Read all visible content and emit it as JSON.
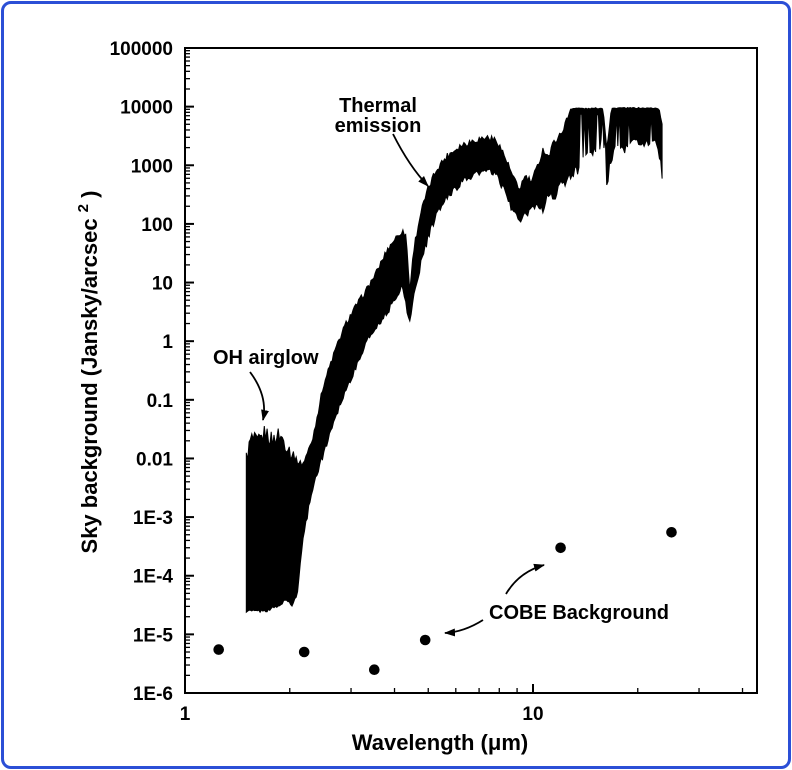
{
  "frame": {
    "border_color": "#2b4fd6",
    "background": "#ffffff"
  },
  "chart_data": {
    "type": "area+scatter",
    "title": "",
    "xlabel": "Wavelength (μm)",
    "ylabel": "Sky background (Jansky/arcsec²)",
    "ylabel_parts": {
      "main": "Sky background (Jansky/arcsec",
      "sup": "2",
      "end": ")"
    },
    "x_scale": "log",
    "y_scale": "log",
    "xlim": [
      1,
      44
    ],
    "ylim": [
      1e-06,
      100000.0
    ],
    "grid": false,
    "x_major_ticks": [
      {
        "value": 1,
        "label": "1"
      },
      {
        "value": 10,
        "label": "10"
      }
    ],
    "x_minor_ticks": [
      2,
      3,
      4,
      5,
      6,
      7,
      8,
      9,
      20,
      30,
      40
    ],
    "y_major_ticks": [
      {
        "value": 100000,
        "label": "100000"
      },
      {
        "value": 10000,
        "label": "10000"
      },
      {
        "value": 1000,
        "label": "1000"
      },
      {
        "value": 100,
        "label": "100"
      },
      {
        "value": 10,
        "label": "10"
      },
      {
        "value": 1,
        "label": "1"
      },
      {
        "value": 0.1,
        "label": "0.1"
      },
      {
        "value": 0.01,
        "label": "0.01"
      },
      {
        "value": 0.001,
        "label": "1E-3"
      },
      {
        "value": 0.0001,
        "label": "1E-4"
      },
      {
        "value": 1e-05,
        "label": "1E-5"
      },
      {
        "value": 1e-06,
        "label": "1E-6"
      }
    ],
    "annotations": {
      "thermal": {
        "line1": "Thermal",
        "line2": "emission",
        "target": "thermal emission band near 5 μm"
      },
      "oh": {
        "text": "OH airglow",
        "target": "OH airglow band near 1.6 μm"
      },
      "cobe": {
        "text": "COBE Background",
        "target": "COBE scatter points"
      }
    },
    "series": [
      {
        "name": "sky-background-spectrum",
        "type": "filled-band",
        "color": "#000000",
        "description": "Noisy filled band: OH airglow (1.5-2 um) rising through thermal emission to ~1e4 Jy/arcsec2 at 13-24 um; values are [wavelength_um, band_low, band_high] in Jansky/arcsec2",
        "envelope": [
          [
            1.5,
            2.5e-05,
            0.01
          ],
          [
            1.55,
            2.5e-05,
            0.022
          ],
          [
            1.62,
            2.5e-05,
            0.018
          ],
          [
            1.7,
            2.5e-05,
            0.028
          ],
          [
            1.78,
            2.8e-05,
            0.02
          ],
          [
            1.86,
            3e-05,
            0.026
          ],
          [
            1.95,
            4e-05,
            0.018
          ],
          [
            2.03,
            3e-05,
            0.012
          ],
          [
            2.1,
            5e-05,
            0.009
          ],
          [
            2.18,
            0.0004,
            0.008
          ],
          [
            2.32,
            0.003,
            0.02
          ],
          [
            2.5,
            0.012,
            0.18
          ],
          [
            2.7,
            0.05,
            0.7
          ],
          [
            2.9,
            0.15,
            2.0
          ],
          [
            3.1,
            0.35,
            4.0
          ],
          [
            3.3,
            0.9,
            7.0
          ],
          [
            3.55,
            1.8,
            15
          ],
          [
            3.8,
            3.0,
            35
          ],
          [
            4.0,
            5.0,
            55
          ],
          [
            4.2,
            9.0,
            75
          ],
          [
            4.32,
            4.0,
            65
          ],
          [
            4.42,
            2.0,
            7.0
          ],
          [
            4.55,
            6.0,
            40
          ],
          [
            4.75,
            20,
            150
          ],
          [
            5.0,
            60,
            400
          ],
          [
            5.3,
            150,
            900
          ],
          [
            5.7,
            300,
            1500
          ],
          [
            6.2,
            500,
            2200
          ],
          [
            6.8,
            700,
            2700
          ],
          [
            7.4,
            800,
            3000
          ],
          [
            7.9,
            650,
            2600
          ],
          [
            8.3,
            350,
            1400
          ],
          [
            8.7,
            180,
            700
          ],
          [
            9.1,
            110,
            380
          ],
          [
            9.5,
            140,
            650
          ],
          [
            9.9,
            170,
            520
          ],
          [
            10.3,
            220,
            950
          ],
          [
            10.7,
            170,
            1900
          ],
          [
            11.1,
            350,
            1400
          ],
          [
            11.5,
            250,
            2600
          ],
          [
            11.95,
            550,
            3200
          ],
          [
            12.4,
            450,
            5200
          ],
          [
            12.85,
            700,
            9300
          ],
          [
            13.5,
            900,
            9400
          ],
          [
            14.3,
            1300,
            9200
          ],
          [
            15.2,
            2000,
            9400
          ],
          [
            15.9,
            2600,
            9300
          ],
          [
            16.3,
            500,
            1900
          ],
          [
            16.8,
            1300,
            9300
          ],
          [
            17.6,
            2400,
            9500
          ],
          [
            18.6,
            1800,
            9400
          ],
          [
            19.6,
            2800,
            9500
          ],
          [
            21.0,
            2200,
            9400
          ],
          [
            22.3,
            3000,
            9450
          ],
          [
            23.0,
            1500,
            9300
          ],
          [
            23.5,
            700,
            5000
          ]
        ]
      },
      {
        "name": "cobe-background",
        "label": "COBE Background",
        "type": "scatter",
        "marker": "circle",
        "color": "#000000",
        "points": [
          [
            1.25,
            5.5e-06
          ],
          [
            2.2,
            5e-06
          ],
          [
            3.5,
            2.5e-06
          ],
          [
            4.9,
            8e-06
          ],
          [
            12,
            0.0003
          ],
          [
            25,
            0.00055
          ]
        ]
      }
    ]
  }
}
